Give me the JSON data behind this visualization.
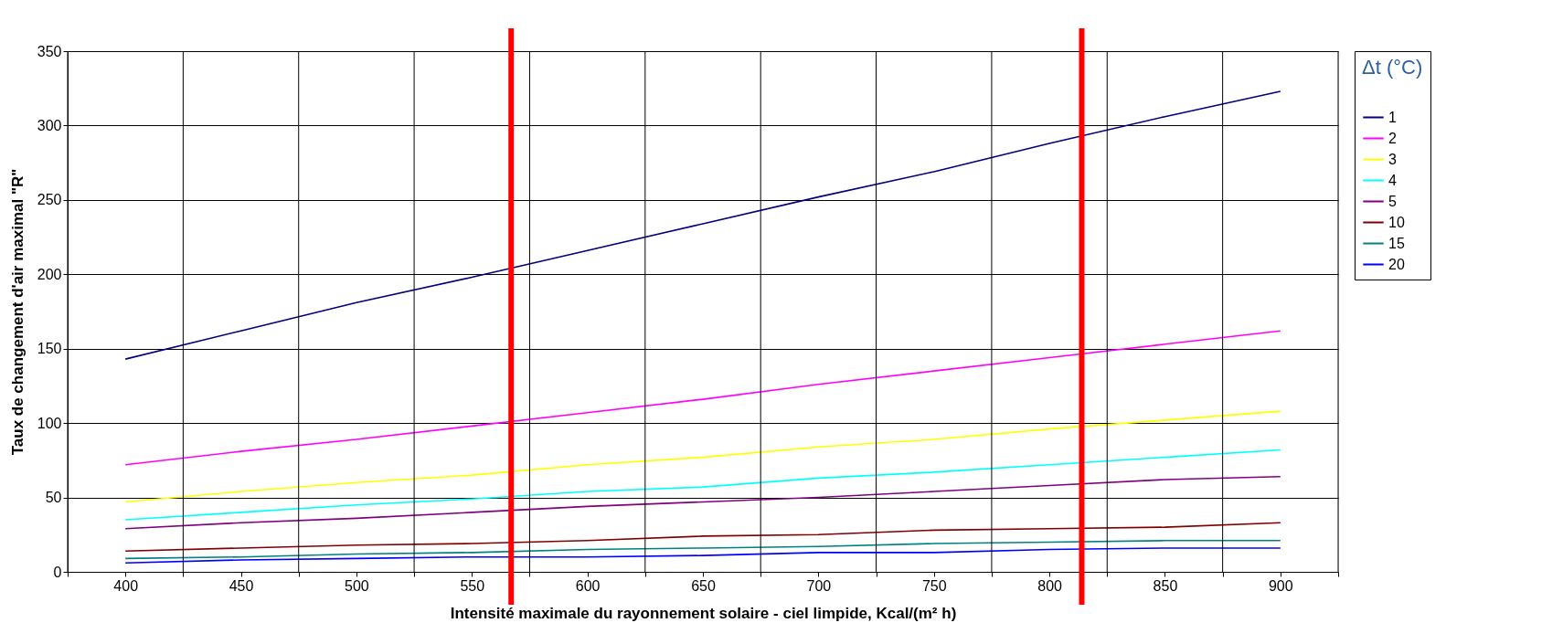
{
  "chart_data": {
    "type": "line",
    "xlabel": "Intensité maximale du rayonnement solaire - ciel limpide, Kcal/(m² h)",
    "ylabel": "Taux de changement d'air maximal \"R\"",
    "legend_title": "Δt (°C)",
    "x": [
      400,
      450,
      500,
      550,
      600,
      650,
      700,
      750,
      800,
      850,
      900
    ],
    "xlim": [
      375,
      925
    ],
    "xticks": [
      {
        "value": 375,
        "label": null
      },
      400,
      {
        "value": 425,
        "label": null
      },
      450,
      {
        "value": 475,
        "label": null
      },
      500,
      {
        "value": 525,
        "label": null
      },
      550,
      {
        "value": 575,
        "label": null
      },
      600,
      {
        "value": 625,
        "label": null
      },
      650,
      {
        "value": 675,
        "label": null
      },
      700,
      {
        "value": 725,
        "label": null
      },
      750,
      {
        "value": 775,
        "label": null
      },
      800,
      {
        "value": 825,
        "label": null
      },
      850,
      {
        "value": 875,
        "label": null
      },
      900,
      {
        "value": 925,
        "label": null
      }
    ],
    "ylim": [
      0,
      350
    ],
    "yticks": [
      0,
      50,
      100,
      150,
      200,
      250,
      300,
      350
    ],
    "grid": true,
    "legend": "right",
    "marker": "none",
    "line_style": "solid",
    "series": [
      {
        "name": "1",
        "color": "#000080",
        "values": [
          143,
          162,
          181,
          198,
          216,
          234,
          252,
          269,
          288,
          306,
          323
        ]
      },
      {
        "name": "2",
        "color": "#ff00ff",
        "values": [
          72,
          81,
          89,
          98,
          107,
          116,
          126,
          135,
          144,
          153,
          162
        ]
      },
      {
        "name": "3",
        "color": "#ffff00",
        "values": [
          47,
          54,
          60,
          65,
          72,
          77,
          84,
          89,
          96,
          102,
          108
        ]
      },
      {
        "name": "4",
        "color": "#00ffff",
        "values": [
          35,
          40,
          45,
          49,
          54,
          57,
          63,
          67,
          72,
          77,
          82
        ]
      },
      {
        "name": "5",
        "color": "#800080",
        "values": [
          29,
          33,
          36,
          40,
          44,
          47,
          50,
          54,
          58,
          62,
          64
        ]
      },
      {
        "name": "10",
        "color": "#800000",
        "values": [
          14,
          16,
          18,
          19,
          21,
          24,
          25,
          28,
          29,
          30,
          33
        ]
      },
      {
        "name": "15",
        "color": "#008080",
        "values": [
          9,
          10,
          12,
          13,
          15,
          16,
          17,
          19,
          20,
          21,
          21
        ]
      },
      {
        "name": "20",
        "color": "#0000ff",
        "values": [
          6,
          8,
          9,
          10,
          10,
          11,
          13,
          13,
          15,
          16,
          16
        ]
      }
    ],
    "ref_lines": [
      {
        "axis": "x",
        "value": 567,
        "color": "#ff0000"
      },
      {
        "axis": "x",
        "value": 814,
        "color": "#ff0000"
      }
    ]
  }
}
